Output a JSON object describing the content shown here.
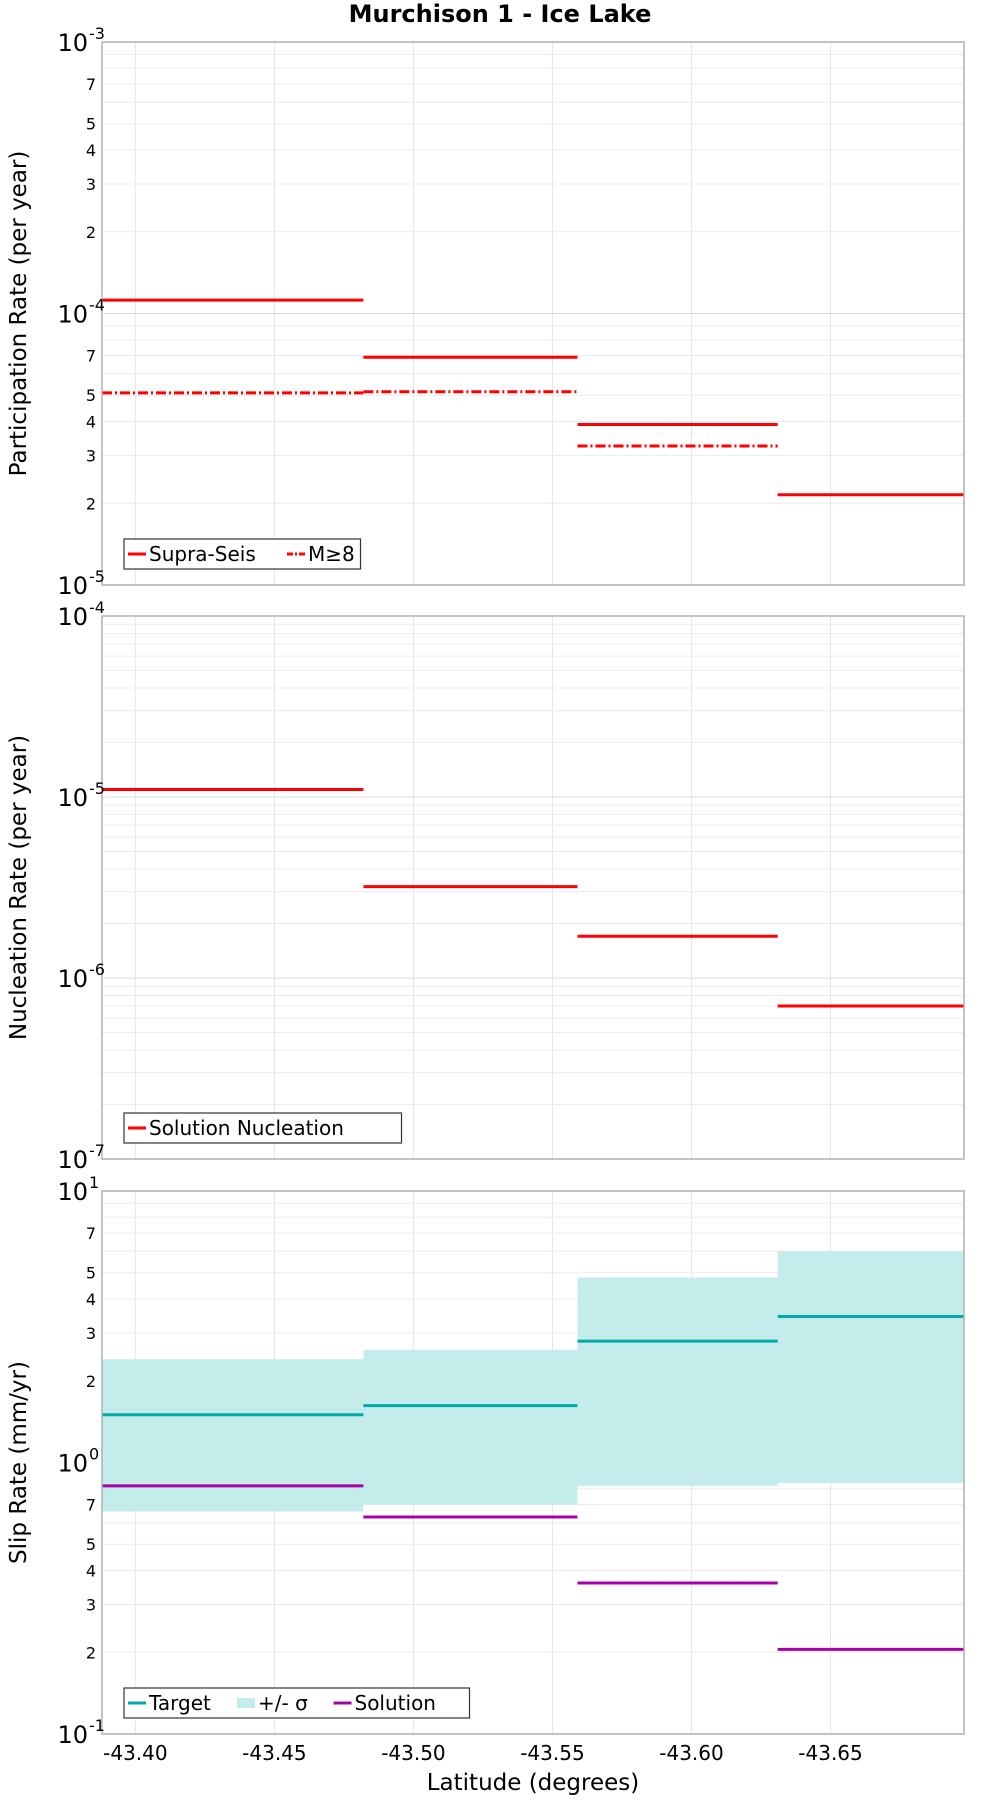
{
  "chart_data": {
    "type": "line",
    "title": "Murchison 1 - Ice Lake",
    "xlabel": "Latitude (degrees)",
    "xlim": [
      -43.388,
      -43.698
    ],
    "x_ticks": [
      -43.4,
      -43.45,
      -43.5,
      -43.55,
      -43.6,
      -43.65
    ],
    "x_tick_labels": [
      "-43.40",
      "-43.45",
      "-43.50",
      "-43.55",
      "-43.60",
      "-43.65"
    ],
    "grid": true,
    "panels": [
      {
        "ylabel": "Participation Rate (per year)",
        "yscale": "log",
        "ylim": [
          1e-05,
          0.001
        ],
        "major_ticks": [
          {
            "base": "10",
            "exp": "-5"
          },
          {
            "base": "10",
            "exp": "-4"
          },
          {
            "base": "10",
            "exp": "-3"
          }
        ],
        "minor_labels": [
          "2",
          "3",
          "4",
          "5",
          "7"
        ],
        "legend_placement": "bottom-left",
        "legend": [
          {
            "label": "Supra-Seis",
            "style": "solid",
            "color": "#ff0000"
          },
          {
            "label": "M≥8",
            "style": "dashdot",
            "color": "#ff0000"
          }
        ],
        "series": [
          {
            "name": "Supra-Seis",
            "color": "#ff0000",
            "style": "solid",
            "segments": [
              {
                "x0": -43.388,
                "x1": -43.482,
                "y": 0.000112
              },
              {
                "x0": -43.482,
                "x1": -43.559,
                "y": 6.9e-05
              },
              {
                "x0": -43.559,
                "x1": -43.631,
                "y": 3.9e-05
              },
              {
                "x0": -43.631,
                "x1": -43.698,
                "y": 2.15e-05
              }
            ]
          },
          {
            "name": "M≥8",
            "color": "#ff0000",
            "style": "dashdot",
            "segments": [
              {
                "x0": -43.388,
                "x1": -43.482,
                "y": 5.1e-05
              },
              {
                "x0": -43.482,
                "x1": -43.559,
                "y": 5.15e-05
              },
              {
                "x0": -43.559,
                "x1": -43.631,
                "y": 3.25e-05
              }
            ]
          }
        ]
      },
      {
        "ylabel": "Nucleation Rate (per year)",
        "yscale": "log",
        "ylim": [
          1e-07,
          0.0001
        ],
        "major_ticks": [
          {
            "base": "10",
            "exp": "-7"
          },
          {
            "base": "10",
            "exp": "-6"
          },
          {
            "base": "10",
            "exp": "-5"
          },
          {
            "base": "10",
            "exp": "-4"
          }
        ],
        "minor_labels": [],
        "legend_placement": "bottom-left",
        "legend": [
          {
            "label": "Solution Nucleation",
            "style": "solid",
            "color": "#ff0000"
          }
        ],
        "series": [
          {
            "name": "Solution Nucleation",
            "color": "#ff0000",
            "style": "solid",
            "segments": [
              {
                "x0": -43.388,
                "x1": -43.482,
                "y": 1.1e-05
              },
              {
                "x0": -43.482,
                "x1": -43.559,
                "y": 3.2e-06
              },
              {
                "x0": -43.559,
                "x1": -43.631,
                "y": 1.7e-06
              },
              {
                "x0": -43.631,
                "x1": -43.698,
                "y": 7e-07
              }
            ]
          }
        ]
      },
      {
        "ylabel": "Slip Rate (mm/yr)",
        "yscale": "log",
        "ylim": [
          0.1,
          10
        ],
        "major_ticks": [
          {
            "base": "10",
            "exp": "-1"
          },
          {
            "base": "10",
            "exp": "0"
          },
          {
            "base": "10",
            "exp": "1"
          }
        ],
        "minor_labels": [
          "2",
          "3",
          "4",
          "5",
          "7"
        ],
        "legend_placement": "bottom-left",
        "legend": [
          {
            "label": "Target",
            "style": "solid",
            "color": "#00aaaa"
          },
          {
            "label": "+/- σ",
            "style": "box",
            "color": "#c4ecea"
          },
          {
            "label": "Solution",
            "style": "solid",
            "color": "#aa00aa"
          }
        ],
        "bands": [
          {
            "name": "+/- σ",
            "color": "#c4ecea",
            "segments": [
              {
                "x0": -43.388,
                "x1": -43.482,
                "low": 0.66,
                "high": 2.4
              },
              {
                "x0": -43.482,
                "x1": -43.559,
                "low": 0.7,
                "high": 2.6
              },
              {
                "x0": -43.559,
                "x1": -43.631,
                "low": 0.82,
                "high": 4.8
              },
              {
                "x0": -43.631,
                "x1": -43.698,
                "low": 0.84,
                "high": 6.0
              }
            ]
          }
        ],
        "series": [
          {
            "name": "Target",
            "color": "#00aaaa",
            "style": "solid",
            "segments": [
              {
                "x0": -43.388,
                "x1": -43.482,
                "y": 1.5
              },
              {
                "x0": -43.482,
                "x1": -43.559,
                "y": 1.62
              },
              {
                "x0": -43.559,
                "x1": -43.631,
                "y": 2.8
              },
              {
                "x0": -43.631,
                "x1": -43.698,
                "y": 3.45
              }
            ]
          },
          {
            "name": "Solution",
            "color": "#aa00aa",
            "style": "solid",
            "segments": [
              {
                "x0": -43.388,
                "x1": -43.482,
                "y": 0.82
              },
              {
                "x0": -43.482,
                "x1": -43.559,
                "y": 0.63
              },
              {
                "x0": -43.559,
                "x1": -43.631,
                "y": 0.36
              },
              {
                "x0": -43.631,
                "x1": -43.698,
                "y": 0.205
              }
            ]
          }
        ]
      }
    ]
  }
}
